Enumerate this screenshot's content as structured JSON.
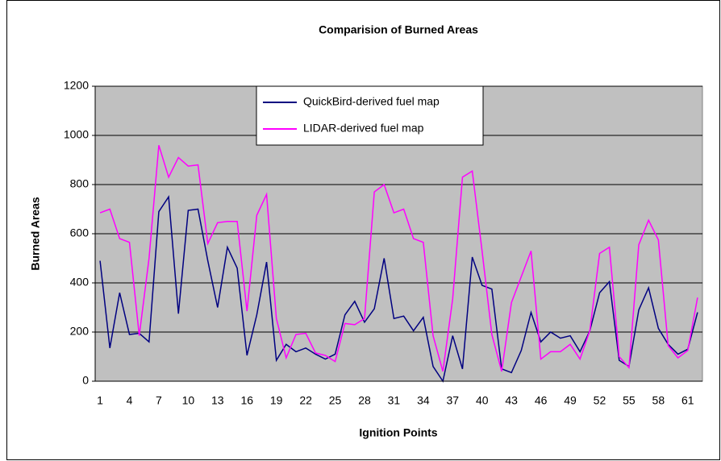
{
  "chart_data": {
    "type": "line",
    "title": "Comparision of Burned Areas",
    "x_label": "Ignition Points",
    "y_label": "Burned Areas",
    "categories": [
      "1",
      null,
      null,
      "4",
      null,
      null,
      "7",
      null,
      null,
      "10",
      null,
      null,
      "13",
      null,
      null,
      "16",
      null,
      null,
      "19",
      null,
      null,
      "22",
      null,
      null,
      "25",
      null,
      null,
      "28",
      null,
      null,
      "31",
      null,
      null,
      "34",
      null,
      null,
      "37",
      null,
      null,
      "40",
      null,
      null,
      "43",
      null,
      null,
      "46",
      null,
      null,
      "49",
      null,
      null,
      "52",
      null,
      null,
      "55",
      null,
      null,
      "58",
      null,
      null,
      "61",
      null
    ],
    "series": [
      {
        "name": "QuickBird-derived fuel map",
        "color": "#000080",
        "values": [
          490,
          135,
          360,
          190,
          195,
          160,
          690,
          750,
          275,
          695,
          700,
          490,
          300,
          545,
          460,
          105,
          270,
          485,
          85,
          150,
          120,
          135,
          110,
          90,
          110,
          270,
          325,
          240,
          295,
          500,
          255,
          265,
          205,
          260,
          60,
          0,
          185,
          50,
          505,
          390,
          375,
          50,
          35,
          125,
          280,
          160,
          200,
          175,
          185,
          120,
          205,
          360,
          405,
          85,
          60,
          290,
          380,
          215,
          150,
          110,
          130,
          280
        ]
      },
      {
        "name": "LIDAR-derived fuel map",
        "color": "#ff00ff",
        "values": [
          685,
          700,
          580,
          565,
          185,
          500,
          960,
          830,
          910,
          875,
          880,
          560,
          645,
          650,
          650,
          285,
          675,
          760,
          255,
          95,
          190,
          195,
          115,
          105,
          80,
          235,
          230,
          255,
          770,
          800,
          685,
          700,
          580,
          565,
          185,
          40,
          335,
          830,
          855,
          530,
          190,
          40,
          320,
          425,
          530,
          90,
          120,
          120,
          150,
          90,
          205,
          520,
          545,
          100,
          55,
          555,
          655,
          575,
          145,
          95,
          125,
          340
        ]
      }
    ],
    "ylim": [
      0,
      1200
    ],
    "yticks": [
      0,
      200,
      400,
      600,
      800,
      1000,
      1200
    ],
    "grid": true
  }
}
